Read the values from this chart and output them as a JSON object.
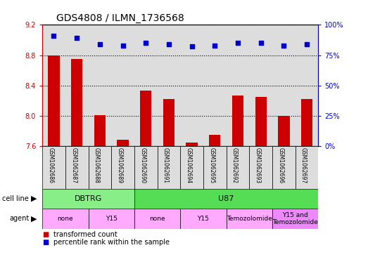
{
  "title": "GDS4808 / ILMN_1736568",
  "samples": [
    "GSM1062686",
    "GSM1062687",
    "GSM1062688",
    "GSM1062689",
    "GSM1062690",
    "GSM1062691",
    "GSM1062694",
    "GSM1062695",
    "GSM1062692",
    "GSM1062693",
    "GSM1062696",
    "GSM1062697"
  ],
  "bar_values": [
    8.8,
    8.75,
    8.01,
    7.69,
    8.33,
    8.22,
    7.65,
    7.75,
    8.27,
    8.25,
    8.0,
    8.22
  ],
  "dot_values": [
    91,
    89,
    84,
    83,
    85,
    84,
    82,
    83,
    85,
    85,
    83,
    84
  ],
  "ylim_left": [
    7.6,
    9.2
  ],
  "ylim_right": [
    0,
    100
  ],
  "yticks_left": [
    7.6,
    8.0,
    8.4,
    8.8,
    9.2
  ],
  "yticks_right": [
    0,
    25,
    50,
    75,
    100
  ],
  "bar_color": "#cc0000",
  "dot_color": "#0000cc",
  "bar_bottom": 7.6,
  "cell_line_groups": [
    {
      "label": "DBTRG",
      "start": 0,
      "end": 4,
      "color": "#88ee88"
    },
    {
      "label": "U87",
      "start": 4,
      "end": 12,
      "color": "#55dd55"
    }
  ],
  "agent_groups": [
    {
      "label": "none",
      "start": 0,
      "end": 2,
      "color": "#ffaaff"
    },
    {
      "label": "Y15",
      "start": 2,
      "end": 4,
      "color": "#ffaaff"
    },
    {
      "label": "none",
      "start": 4,
      "end": 6,
      "color": "#ffaaff"
    },
    {
      "label": "Y15",
      "start": 6,
      "end": 8,
      "color": "#ffaaff"
    },
    {
      "label": "Temozolomide",
      "start": 8,
      "end": 10,
      "color": "#ffaaff"
    },
    {
      "label": "Y15 and\nTemozolomide",
      "start": 10,
      "end": 12,
      "color": "#ee88ff"
    }
  ],
  "legend_items": [
    {
      "label": "transformed count",
      "color": "#cc0000"
    },
    {
      "label": "percentile rank within the sample",
      "color": "#0000cc"
    }
  ],
  "background_color": "#ffffff",
  "sample_bg_color": "#dddddd",
  "plot_bg_color": "#ffffff"
}
